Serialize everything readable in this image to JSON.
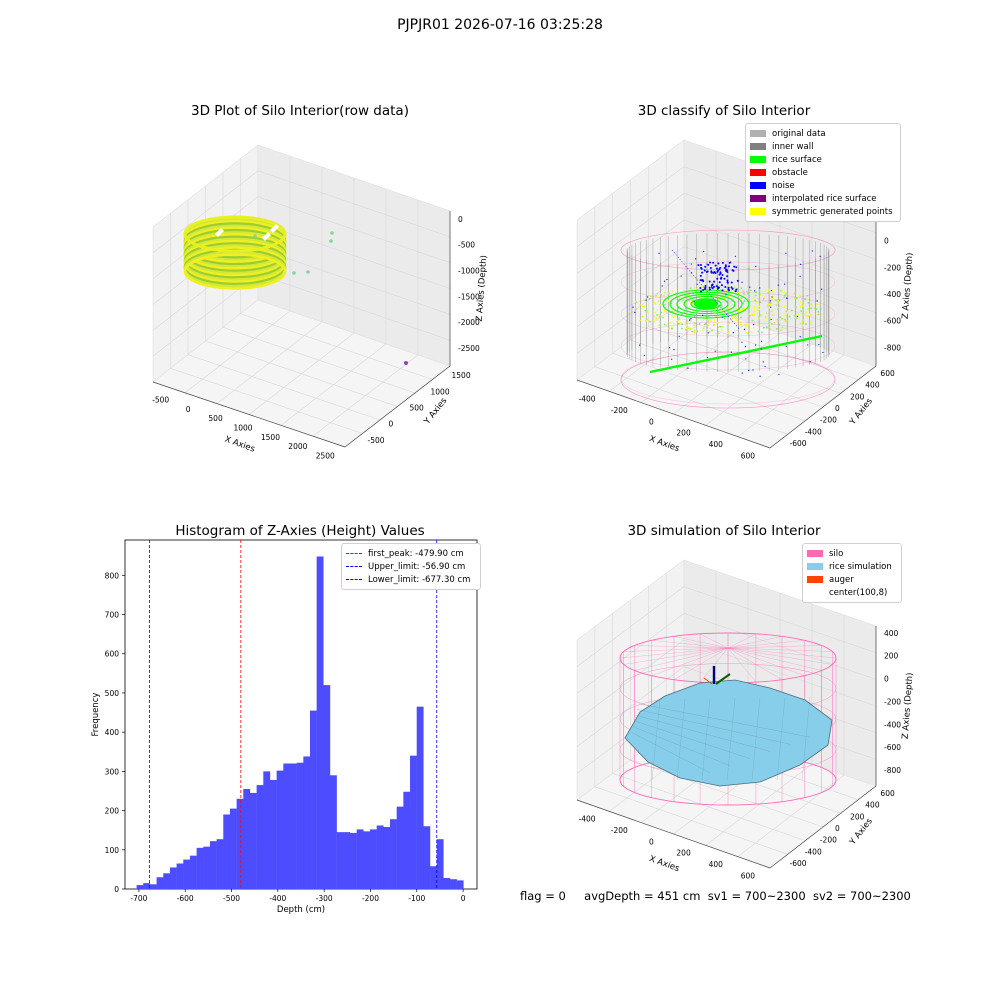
{
  "suptitle": "PJPJR01 2026-07-16 03:25:28",
  "status_line": {
    "flag": "flag = 0",
    "avg_depth": "avgDepth = 451 cm",
    "sv1": "sv1 = 700~2300",
    "sv2": "sv2 = 700~2300"
  },
  "colors": {
    "original_data": "#b0b0b0",
    "inner_wall": "#808080",
    "rice_surface": "#00ff00",
    "obstacle": "#ff0000",
    "noise": "#0000ff",
    "interpolated_rice_surface": "#800080",
    "symmetric_generated_points": "#ffff00",
    "silo": "#ff69b4",
    "rice_simulation": "#87ceeb",
    "auger": "#ff4500",
    "histogram_bar": "#4d4dff",
    "first_peak_line": "#ff0000",
    "limit_lines": "#0000ff"
  },
  "chart_data": [
    {
      "type": "scatter",
      "title": "3D Plot of Silo Interior(row data)",
      "xlabel": "X Axies",
      "ylabel": "Y Axies",
      "zlabel": "Z Axies (Depth)",
      "x_ticks": [
        "-500",
        "0",
        "500",
        "1000",
        "1500",
        "2000",
        "2500"
      ],
      "y_ticks": [
        "-500",
        "0",
        "500",
        "1000",
        "1500"
      ],
      "z_ticks": [
        "0",
        "-500",
        "-1000",
        "-1500",
        "-2000",
        "-2500"
      ]
    },
    {
      "type": "scatter",
      "title": "3D classify of Silo Interior",
      "xlabel": "X Axies",
      "ylabel": "Y Axies",
      "zlabel": "Z Axies (Depth)",
      "x_ticks": [
        "-400",
        "-200",
        "0",
        "200",
        "400",
        "600"
      ],
      "y_ticks": [
        "-600",
        "-400",
        "-200",
        "0",
        "200",
        "400",
        "600"
      ],
      "z_ticks": [
        "200",
        "0",
        "-200",
        "-400",
        "-600",
        "-800"
      ],
      "z_ticks_partial": "00",
      "legend": [
        "original data",
        "inner wall",
        "rice surface",
        "obstacle",
        "noise",
        "interpolated rice surface",
        "symmetric generated points"
      ],
      "legend_placement": "top-right"
    },
    {
      "type": "bar",
      "title": "Histogram of Z-Axies (Height) Values",
      "xlabel": "Depth (cm)",
      "ylabel": "Frequency",
      "xlim": [
        -730,
        30
      ],
      "ylim": [
        0,
        890
      ],
      "x_ticks": [
        -700,
        -600,
        -500,
        -400,
        -300,
        -200,
        -100,
        0
      ],
      "y_ticks": [
        0,
        100,
        200,
        300,
        400,
        500,
        600,
        700,
        800
      ],
      "bin_start": -705,
      "bin_width": 14.4,
      "values": [
        10,
        15,
        12,
        30,
        40,
        55,
        65,
        75,
        85,
        105,
        108,
        122,
        127,
        190,
        205,
        230,
        255,
        245,
        265,
        300,
        278,
        302,
        320,
        320,
        322,
        338,
        455,
        848,
        520,
        290,
        145,
        145,
        143,
        152,
        147,
        152,
        162,
        158,
        178,
        210,
        248,
        340,
        465,
        160,
        58,
        127,
        28,
        25,
        22
      ],
      "vlines": [
        {
          "label": "first_peak: -479.90 cm",
          "x": -479.9
        },
        {
          "label": "Upper_limit: -56.90 cm",
          "x": -56.9
        },
        {
          "label": "Lower_limit: -677.30 cm",
          "x": -677.3
        }
      ],
      "legend_placement": "top-right"
    },
    {
      "type": "area",
      "title": "3D simulation of Silo Interior",
      "xlabel": "X Axies",
      "ylabel": "Y Axies",
      "zlabel": "Z Axies (Depth)",
      "x_ticks": [
        "-400",
        "-200",
        "0",
        "200",
        "400",
        "600"
      ],
      "y_ticks": [
        "-600",
        "-400",
        "-200",
        "0",
        "200",
        "400",
        "600"
      ],
      "z_ticks": [
        "400",
        "200",
        "0",
        "-200",
        "-400",
        "-600",
        "-800"
      ],
      "legend": [
        "silo",
        "rice simulation",
        "auger",
        "center(100,8)"
      ],
      "legend_placement": "top-right"
    }
  ]
}
